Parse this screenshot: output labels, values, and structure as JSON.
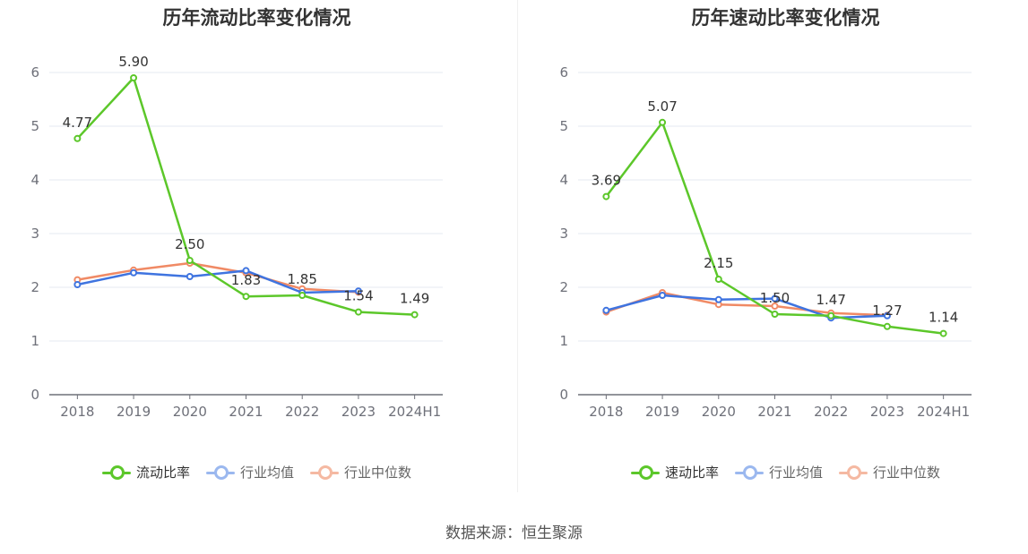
{
  "source": "数据来源：恒生聚源",
  "chart_data": [
    {
      "type": "line",
      "title": "历年流动比率变化情况",
      "categories": [
        "2018",
        "2019",
        "2020",
        "2021",
        "2022",
        "2023",
        "2024H1"
      ],
      "ylim": [
        0,
        6
      ],
      "yticks": [
        "0",
        "1",
        "2",
        "3",
        "4",
        "5",
        "6"
      ],
      "grid": true,
      "legend_position": "bottom",
      "series": [
        {
          "name": "流动比率",
          "color": "#5cc72a",
          "values": [
            4.77,
            5.9,
            2.5,
            1.83,
            1.85,
            1.54,
            1.49
          ],
          "labels": [
            "4.77",
            "5.90",
            "2.50",
            "1.83",
            "1.85",
            "1.54",
            "1.49"
          ]
        },
        {
          "name": "行业均值",
          "color": "#3f74e0",
          "values": [
            2.05,
            2.27,
            2.2,
            2.31,
            1.9,
            1.93,
            null
          ]
        },
        {
          "name": "行业中位数",
          "color": "#f08a65",
          "values": [
            2.14,
            2.32,
            2.45,
            2.27,
            1.97,
            1.91,
            null
          ]
        }
      ]
    },
    {
      "type": "line",
      "title": "历年速动比率变化情况",
      "categories": [
        "2018",
        "2019",
        "2020",
        "2021",
        "2022",
        "2023",
        "2024H1"
      ],
      "ylim": [
        0,
        6
      ],
      "yticks": [
        "0",
        "1",
        "2",
        "3",
        "4",
        "5",
        "6"
      ],
      "grid": true,
      "legend_position": "bottom",
      "series": [
        {
          "name": "速动比率",
          "color": "#5cc72a",
          "values": [
            3.69,
            5.07,
            2.15,
            1.5,
            1.47,
            1.27,
            1.14
          ],
          "labels": [
            "3.69",
            "5.07",
            "2.15",
            "1.50",
            "1.47",
            "1.27",
            "1.14"
          ]
        },
        {
          "name": "行业均值",
          "color": "#3f74e0",
          "values": [
            1.57,
            1.85,
            1.77,
            1.79,
            1.43,
            1.47,
            null
          ]
        },
        {
          "name": "行业中位数",
          "color": "#f08a65",
          "values": [
            1.54,
            1.9,
            1.68,
            1.65,
            1.52,
            1.48,
            null
          ]
        }
      ]
    }
  ]
}
